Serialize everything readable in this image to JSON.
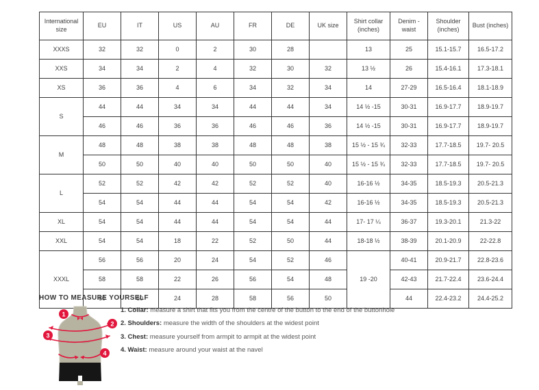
{
  "table": {
    "columns": [
      "International size",
      "EU",
      "IT",
      "US",
      "AU",
      "FR",
      "DE",
      "UK size",
      "Shirt collar (inches)",
      "Denim - waist",
      "Shoulder (inches)",
      "Bust (inches)"
    ],
    "rows": [
      [
        {
          "v": "XXXS",
          "h": true
        },
        "32",
        "32",
        "0",
        "2",
        "30",
        "28",
        "",
        "13",
        "25",
        "15.1-15.7",
        "16.5-17.2"
      ],
      [
        {
          "v": "XXS",
          "h": true
        },
        "34",
        "34",
        "2",
        "4",
        "32",
        "30",
        "32",
        "13 ½",
        "26",
        "15.4-16.1",
        "17.3-18.1"
      ],
      [
        {
          "v": "XS",
          "h": true
        },
        "36",
        "36",
        "4",
        "6",
        "34",
        "32",
        "34",
        "14",
        "27-29",
        "16.5-16.4",
        "18.1-18.9"
      ],
      [
        {
          "v": "S",
          "h": true,
          "rs": 2
        },
        "44",
        "44",
        "34",
        "34",
        "44",
        "44",
        "34",
        "14 ½ -15",
        "30-31",
        "16.9-17.7",
        "18.9-19.7"
      ],
      [
        "46",
        "46",
        "36",
        "36",
        "46",
        "46",
        "36",
        "14 ½ -15",
        "30-31",
        "16.9-17.7",
        "18.9-19.7"
      ],
      [
        {
          "v": "M",
          "h": true,
          "rs": 2
        },
        "48",
        "48",
        "38",
        "38",
        "48",
        "48",
        "38",
        "15 ½ - 15 ¾",
        "32-33",
        "17.7-18.5",
        "19.7- 20.5"
      ],
      [
        "50",
        "50",
        "40",
        "40",
        "50",
        "50",
        "40",
        "15 ½ - 15 ¾",
        "32-33",
        "17.7-18.5",
        "19.7- 20.5"
      ],
      [
        {
          "v": "L",
          "h": true,
          "rs": 2
        },
        "52",
        "52",
        "42",
        "42",
        "52",
        "52",
        "40",
        "16-16 ½",
        "34-35",
        "18.5-19.3",
        "20.5-21.3"
      ],
      [
        "54",
        "54",
        "44",
        "44",
        "54",
        "54",
        "42",
        "16-16 ½",
        "34-35",
        "18.5-19.3",
        "20.5-21.3"
      ],
      [
        {
          "v": "XL",
          "h": true
        },
        "54",
        "54",
        "44",
        "44",
        "54",
        "54",
        "44",
        "17- 17 ¼",
        "36-37",
        "19.3-20.1",
        "21.3-22"
      ],
      [
        {
          "v": "XXL",
          "h": true
        },
        "54",
        "54",
        "18",
        "22",
        "52",
        "50",
        "44",
        "18-18 ½",
        "38-39",
        "20.1-20.9",
        "22-22.8"
      ],
      [
        {
          "v": "XXXL",
          "h": true,
          "rs": 3
        },
        "56",
        "56",
        "20",
        "24",
        "54",
        "52",
        "46",
        {
          "v": "19 -20",
          "rs": 3
        },
        "40-41",
        "20.9-21.7",
        "22.8-23.6"
      ],
      [
        "58",
        "58",
        "22",
        "26",
        "56",
        "54",
        "48",
        "42-43",
        "21.7-22.4",
        "23.6-24.4"
      ],
      [
        "60",
        "60",
        "24",
        "28",
        "58",
        "56",
        "50",
        "44",
        "22.4-23.2",
        "24.4-25.2"
      ]
    ]
  },
  "measure": {
    "title": "HOW TO MEASURE YOURSELF",
    "items": [
      {
        "num": "1.",
        "label": "Collar:",
        "text": "measure a shirt that fits you from the centre of the button to the end of the buttonhole"
      },
      {
        "num": "2.",
        "label": "Shoulders:",
        "text": "measure the width of the shoulders at the widest point"
      },
      {
        "num": "3.",
        "label": "Chest:",
        "text": "measure yourself from armpit to armpit at the widest point"
      },
      {
        "num": "4.",
        "label": "Waist:",
        "text": "measure around your waist at the navel"
      }
    ],
    "badges": [
      "1",
      "2",
      "3",
      "4"
    ]
  },
  "colors": {
    "accent_red": "#e2173d",
    "torso": "#b6b3a1",
    "shorts": "#161616",
    "table_border": "#333333"
  }
}
